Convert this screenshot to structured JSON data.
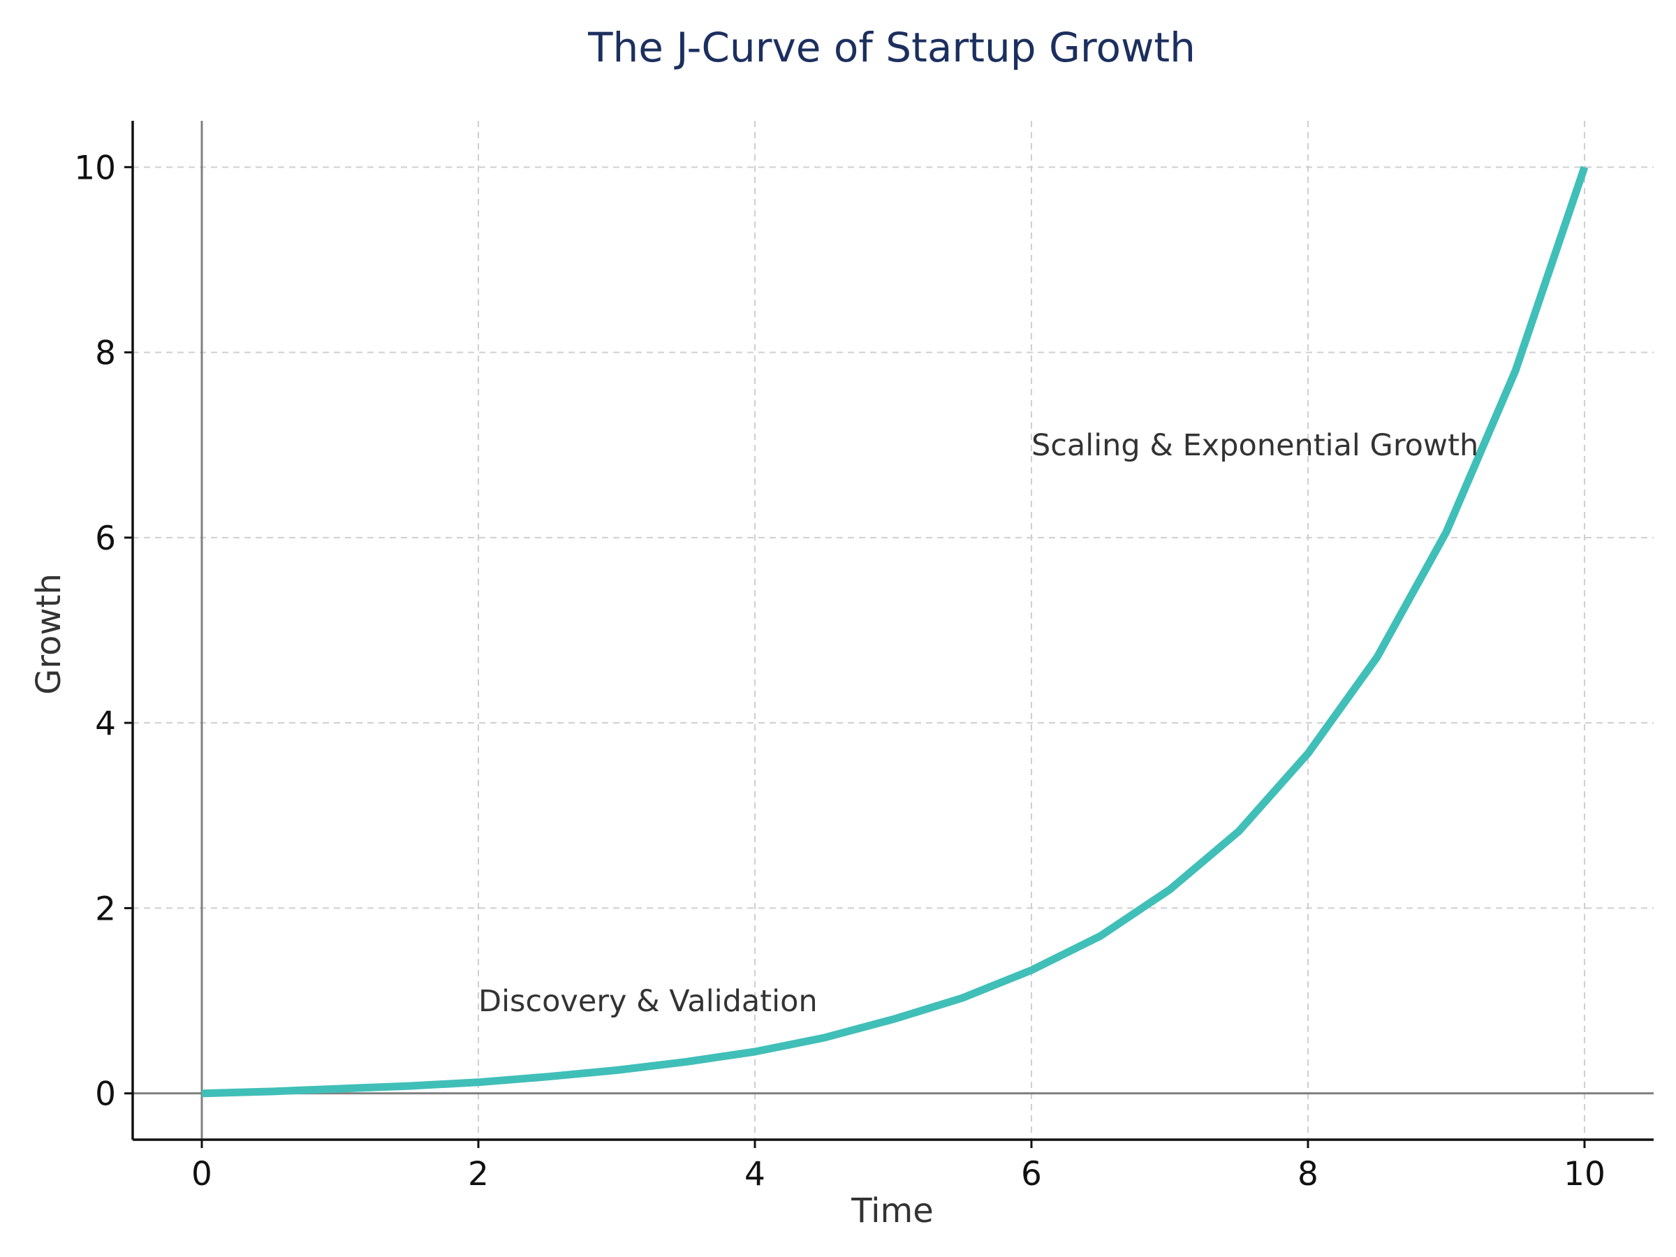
{
  "chart_data": {
    "type": "line",
    "title": "The J-Curve of Startup Growth",
    "xlabel": "Time",
    "ylabel": "Growth",
    "xlim": [
      -0.5,
      10.5
    ],
    "ylim": [
      -0.5,
      10.5
    ],
    "xticks": [
      0,
      2,
      4,
      6,
      8,
      10
    ],
    "yticks": [
      0,
      2,
      4,
      6,
      8,
      10
    ],
    "xtick_labels": [
      "0",
      "2",
      "4",
      "6",
      "8",
      "10"
    ],
    "ytick_labels": [
      "0",
      "2",
      "4",
      "6",
      "8",
      "10"
    ],
    "grid": true,
    "series": [
      {
        "color": "#40bfb8",
        "x": [
          0,
          0.5,
          1,
          1.5,
          2,
          2.5,
          3,
          3.5,
          4,
          4.5,
          5,
          5.5,
          6,
          6.5,
          7,
          7.5,
          8,
          8.5,
          9,
          9.5,
          10
        ],
        "y": [
          0,
          0.02,
          0.05,
          0.08,
          0.12,
          0.18,
          0.25,
          0.34,
          0.45,
          0.6,
          0.8,
          1.03,
          1.33,
          1.7,
          2.2,
          2.83,
          3.67,
          4.71,
          6.06,
          7.8,
          10
        ]
      }
    ],
    "annotations": [
      {
        "text": "Discovery & Validation",
        "x": 2,
        "y": 1
      },
      {
        "text": "Scaling & Exponential Growth",
        "x": 6,
        "y": 7
      }
    ]
  }
}
